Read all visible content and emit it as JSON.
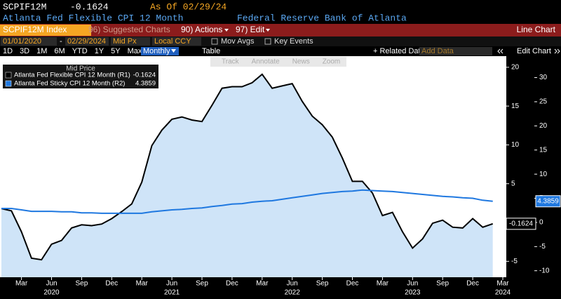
{
  "header": {
    "ticker": "SCPIF12M",
    "as_of": "As Of 02/29/24",
    "name": "Atlanta Fed Flexible CPI 12 Month",
    "source": "Federal Reserve Bank of Atlanta"
  },
  "menu": {
    "security": "SCPIF12M Index",
    "suggested": "96) Suggested Charts",
    "actions": "90) Actions",
    "edit": "97) Edit",
    "chart_kind": "Line Chart"
  },
  "controls": {
    "start": "01/01/2020",
    "dash": "-",
    "end": "02/29/2024",
    "price": "Mid Px",
    "currency": "Local CCY",
    "mov_avgs": "Mov Avgs",
    "key_events": "Key Events",
    "periods": [
      "1D",
      "3D",
      "1M",
      "6M",
      "YTD",
      "1Y",
      "5Y",
      "Max"
    ],
    "frequency": "Monthly",
    "table": "Table",
    "related": "+ Related Dat",
    "add_data": "Add Data",
    "edit_chart": "Edit Chart"
  },
  "chart_tools": [
    "Track",
    "Annotate",
    "News",
    "Zoom"
  ],
  "chart_data": {
    "type": "line",
    "legend_title": "Mid Price",
    "x": [
      "2020-01",
      "2020-02",
      "2020-03",
      "2020-04",
      "2020-05",
      "2020-06",
      "2020-07",
      "2020-08",
      "2020-09",
      "2020-10",
      "2020-11",
      "2020-12",
      "2021-01",
      "2021-02",
      "2021-03",
      "2021-04",
      "2021-05",
      "2021-06",
      "2021-07",
      "2021-08",
      "2021-09",
      "2021-10",
      "2021-11",
      "2021-12",
      "2022-01",
      "2022-02",
      "2022-03",
      "2022-04",
      "2022-05",
      "2022-06",
      "2022-07",
      "2022-08",
      "2022-09",
      "2022-10",
      "2022-11",
      "2022-12",
      "2023-01",
      "2023-02",
      "2023-03",
      "2023-04",
      "2023-05",
      "2023-06",
      "2023-07",
      "2023-08",
      "2023-09",
      "2023-10",
      "2023-11",
      "2023-12",
      "2024-01",
      "2024-02"
    ],
    "xticks": [
      {
        "value": "2020-03",
        "label": "Mar"
      },
      {
        "value": "2020-06",
        "label": "Jun"
      },
      {
        "value": "2020-09",
        "label": "Sep"
      },
      {
        "value": "2020-12",
        "label": "Dec"
      },
      {
        "value": "2021-03",
        "label": "Mar"
      },
      {
        "value": "2021-06",
        "label": "Jun"
      },
      {
        "value": "2021-09",
        "label": "Sep"
      },
      {
        "value": "2021-12",
        "label": "Dec"
      },
      {
        "value": "2022-03",
        "label": "Mar"
      },
      {
        "value": "2022-06",
        "label": "Jun"
      },
      {
        "value": "2022-09",
        "label": "Sep"
      },
      {
        "value": "2022-12",
        "label": "Dec"
      },
      {
        "value": "2023-03",
        "label": "Mar"
      },
      {
        "value": "2023-06",
        "label": "Jun"
      },
      {
        "value": "2023-09",
        "label": "Sep"
      },
      {
        "value": "2023-12",
        "label": "Dec"
      },
      {
        "value": "2024-03",
        "label": "Mar"
      }
    ],
    "xtick_years": [
      {
        "value": "2020-06",
        "label": "2020"
      },
      {
        "value": "2021-06",
        "label": "2021"
      },
      {
        "value": "2022-06",
        "label": "2022"
      },
      {
        "value": "2023-06",
        "label": "2023"
      },
      {
        "value": "2024-03",
        "label": "2024"
      }
    ],
    "ylim": [
      -7.05,
      21.25
    ],
    "yticks": [
      20,
      15,
      10,
      5,
      -5
    ],
    "y2lim": [
      -11.35,
      34.15
    ],
    "y2ticks": [
      30,
      25,
      20,
      15,
      10,
      5,
      0,
      -5,
      -10
    ],
    "series": [
      {
        "name": "Atlanta Fed Flexible CPI 12 Month  (R1)",
        "color": "#000000",
        "fill": "#cfe4f8",
        "axis": "y",
        "values": [
          1.8,
          1.5,
          -1.2,
          -4.6,
          -4.8,
          -2.8,
          -2.3,
          -0.7,
          -0.3,
          -0.4,
          -0.2,
          0.5,
          1.4,
          2.4,
          5.2,
          9.9,
          11.9,
          13.3,
          13.6,
          13.2,
          13.0,
          15.1,
          17.3,
          17.5,
          17.5,
          18.0,
          19.1,
          17.3,
          17.6,
          17.9,
          15.6,
          13.7,
          12.6,
          11.0,
          8.3,
          5.3,
          5.3,
          3.8,
          0.9,
          1.3,
          -1.2,
          -3.3,
          -2.1,
          -0.1,
          0.3,
          -0.6,
          -0.7,
          0.5,
          -0.6,
          -0.1624
        ],
        "value_labels": [
          null,
          null,
          null,
          null,
          null,
          null,
          null,
          null,
          null,
          null,
          null,
          null,
          null,
          null,
          null,
          null,
          null,
          null,
          null,
          null,
          null,
          null,
          null,
          null,
          null,
          null,
          null,
          null,
          null,
          null,
          null,
          null,
          null,
          null,
          null,
          null,
          null,
          null,
          null,
          null,
          null,
          null,
          null,
          null,
          null,
          null,
          null,
          null,
          null,
          "-0.1624"
        ]
      },
      {
        "name": "Atlanta Fed Sticky CPI 12 Month  (R2)",
        "color": "#1f78e0",
        "axis": "y2",
        "values": [
          2.9,
          2.9,
          2.6,
          2.3,
          2.3,
          2.3,
          2.2,
          2.2,
          2.0,
          2.0,
          1.9,
          1.9,
          1.9,
          1.9,
          1.9,
          2.2,
          2.4,
          2.6,
          2.7,
          2.9,
          3.0,
          3.3,
          3.5,
          3.8,
          3.9,
          4.2,
          4.4,
          4.5,
          4.8,
          5.1,
          5.4,
          5.7,
          6.0,
          6.2,
          6.4,
          6.5,
          6.7,
          6.6,
          6.5,
          6.4,
          6.2,
          6.0,
          5.8,
          5.6,
          5.4,
          5.3,
          5.1,
          5.0,
          4.6,
          4.3859
        ],
        "value_labels": [
          null,
          null,
          null,
          null,
          null,
          null,
          null,
          null,
          null,
          null,
          null,
          null,
          null,
          null,
          null,
          null,
          null,
          null,
          null,
          null,
          null,
          null,
          null,
          null,
          null,
          null,
          null,
          null,
          null,
          null,
          null,
          null,
          null,
          null,
          null,
          null,
          null,
          null,
          null,
          null,
          null,
          null,
          null,
          null,
          null,
          null,
          null,
          null,
          null,
          "4.3859"
        ]
      }
    ]
  }
}
